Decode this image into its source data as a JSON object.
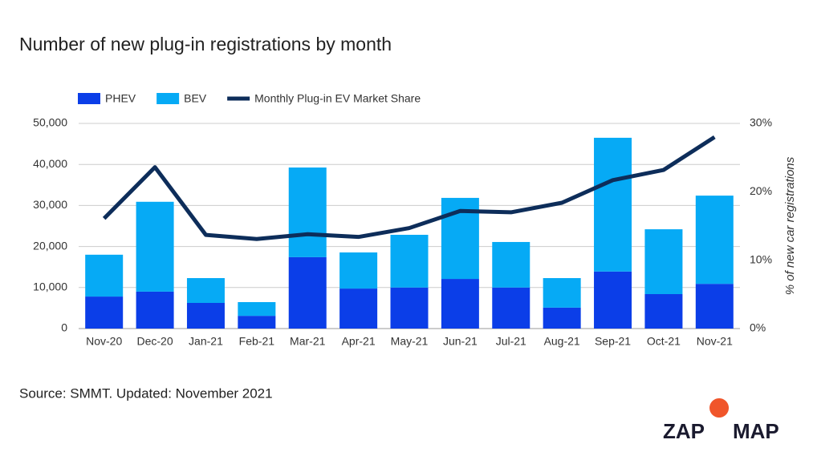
{
  "chart_data": {
    "type": "bar-line",
    "title": "Number of new plug-in registrations by month",
    "source": "Source: SMMT. Updated: November 2021",
    "y2_label": "% of new car registrations",
    "brand": {
      "left": "ZAP",
      "right": "MAP"
    },
    "categories": [
      "Nov-20",
      "Dec-20",
      "Jan-21",
      "Feb-21",
      "Mar-21",
      "Apr-21",
      "May-21",
      "Jun-21",
      "Jul-21",
      "Aug-21",
      "Sep-21",
      "Oct-21",
      "Nov-21"
    ],
    "series": [
      {
        "name": "PHEV",
        "type": "bar",
        "color": "#0b3ee8",
        "values": [
          7800,
          9000,
          6250,
          3100,
          17400,
          9750,
          10000,
          12100,
          10000,
          5100,
          13900,
          8400,
          10900
        ]
      },
      {
        "name": "BEV",
        "type": "bar",
        "color": "#06aaf5",
        "values": [
          10200,
          21900,
          6050,
          3350,
          21850,
          8800,
          12850,
          19750,
          11100,
          7200,
          32600,
          15800,
          21500
        ]
      },
      {
        "name": "Monthly Plug-in EV Market Share",
        "type": "line",
        "axis": "y2",
        "color": "#0d2d5a",
        "values": [
          16.1,
          23.6,
          13.7,
          13.1,
          13.8,
          13.4,
          14.7,
          17.2,
          17.0,
          18.4,
          21.7,
          23.2,
          28.0
        ]
      }
    ],
    "stacked": true,
    "ylim": [
      0,
      50000
    ],
    "yticks": [
      0,
      {
        "value": 10000,
        "label": "10,000"
      },
      {
        "value": 20000,
        "label": "20,000"
      },
      {
        "value": 30000,
        "label": "30,000"
      },
      {
        "value": 40000,
        "label": "40,000"
      },
      {
        "value": 50000,
        "label": "50,000"
      }
    ],
    "y2lim": [
      0,
      30
    ],
    "y2ticks": [
      {
        "value": 0,
        "label": "0%"
      },
      {
        "value": 10,
        "label": "10%"
      },
      {
        "value": 20,
        "label": "20%"
      },
      {
        "value": 30,
        "label": "30%"
      }
    ],
    "grid": true
  }
}
